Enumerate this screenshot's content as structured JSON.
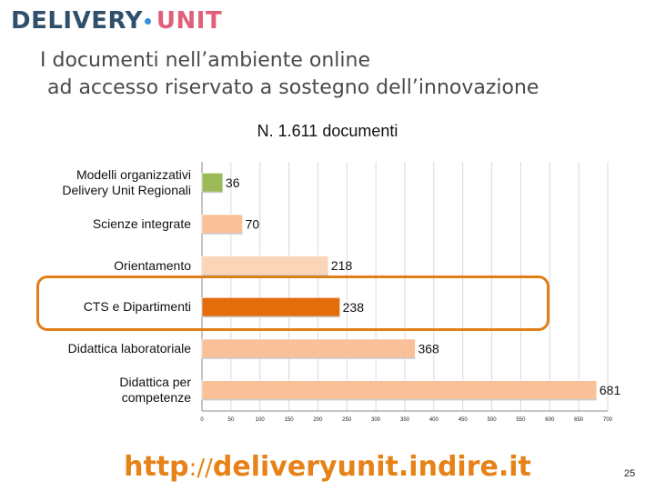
{
  "logo": {
    "word1": "DELIVERY",
    "word2": "UNIT"
  },
  "title": {
    "line1": "I documenti nell’ambiente online",
    "line2": "ad accesso riservato  a sostegno dell’innovazione"
  },
  "footer": {
    "url_part1": "http",
    "url_sep": "://",
    "url_part2": "deliveryunit.indire.it",
    "page": "25"
  },
  "colors": {
    "accent": "#e07f1a",
    "url": "#e68217",
    "title": "#4a4a4a"
  },
  "chart_data": {
    "type": "bar",
    "orientation": "horizontal",
    "title": "N.   1.611 documenti",
    "categories": [
      "Modelli organizzativi Delivery Unit Regionali",
      "Scienze integrate",
      "Orientamento",
      "CTS e Dipartimenti",
      "Didattica laboratoriale",
      "Didattica per competenze"
    ],
    "category_lines": [
      [
        "Modelli organizzativi",
        "Delivery Unit Regionali"
      ],
      [
        "Scienze integrate"
      ],
      [
        "Orientamento"
      ],
      [
        "CTS e Dipartimenti"
      ],
      [
        "Didattica laboratoriale"
      ],
      [
        "Didattica per",
        "competenze"
      ]
    ],
    "values": [
      36,
      70,
      218,
      238,
      368,
      681
    ],
    "value_labels": [
      "36",
      "70",
      "218",
      "238",
      "368",
      "681"
    ],
    "bar_colors": [
      "#9bbb59",
      "#f9c09a",
      "#fbd5b8",
      "#e46c0a",
      "#f9c09a",
      "#f9c09a"
    ],
    "xlim": [
      0,
      700
    ],
    "xticks": [
      0,
      50,
      100,
      150,
      200,
      250,
      300,
      350,
      400,
      450,
      500,
      550,
      600,
      650,
      700
    ],
    "grid": true,
    "legend": "none",
    "highlighted_category": "CTS e Dipartimenti"
  }
}
